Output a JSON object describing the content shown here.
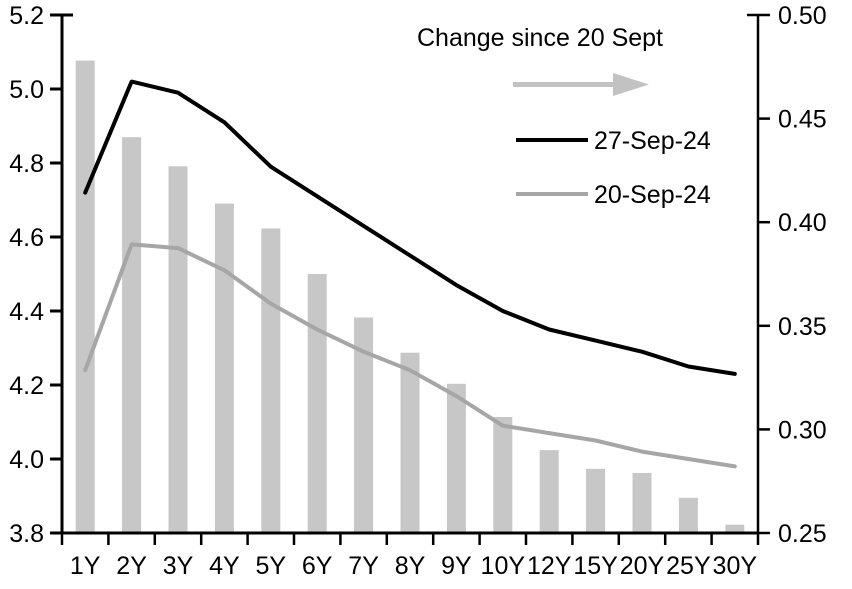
{
  "chart_data": {
    "type": "combo",
    "title": "",
    "categories": [
      "1Y",
      "2Y",
      "3Y",
      "4Y",
      "5Y",
      "6Y",
      "7Y",
      "8Y",
      "9Y",
      "10Y",
      "12Y",
      "15Y",
      "20Y",
      "25Y",
      "30Y"
    ],
    "series": [
      {
        "name": "Change since 20 Sept",
        "type": "bar",
        "axis": "right",
        "color": "#C7C7C7",
        "values": [
          0.478,
          0.441,
          0.427,
          0.409,
          0.397,
          0.375,
          0.354,
          0.337,
          0.322,
          0.306,
          0.29,
          0.281,
          0.279,
          0.267,
          0.254
        ]
      },
      {
        "name": "27-Sep-24",
        "type": "line",
        "axis": "left",
        "color": "#000000",
        "values": [
          4.72,
          5.02,
          4.99,
          4.91,
          4.79,
          4.71,
          4.63,
          4.55,
          4.47,
          4.4,
          4.35,
          4.32,
          4.29,
          4.25,
          4.23
        ]
      },
      {
        "name": "20-Sep-24",
        "type": "line",
        "axis": "left",
        "color": "#A6A6A6",
        "values": [
          4.24,
          4.58,
          4.57,
          4.51,
          4.42,
          4.35,
          4.29,
          4.24,
          4.17,
          4.09,
          4.07,
          4.05,
          4.02,
          4.0,
          3.98
        ]
      }
    ],
    "left_axis": {
      "min": 3.8,
      "max": 5.2,
      "step": 0.2,
      "tick_labels": [
        "5.2",
        "5.0",
        "4.8",
        "4.6",
        "4.4",
        "4.2",
        "4.0",
        "3.8"
      ]
    },
    "right_axis": {
      "min": 0.25,
      "max": 0.5,
      "step": 0.05,
      "tick_labels": [
        "0.50",
        "0.45",
        "0.40",
        "0.35",
        "0.30",
        "0.25"
      ]
    },
    "legend": {
      "title": "Change since 20 Sept",
      "arrow_color": "#C2C2C2",
      "entries": [
        "27-Sep-24",
        "20-Sep-24"
      ]
    },
    "grid": "off",
    "legend_position": "top-right-inside"
  }
}
